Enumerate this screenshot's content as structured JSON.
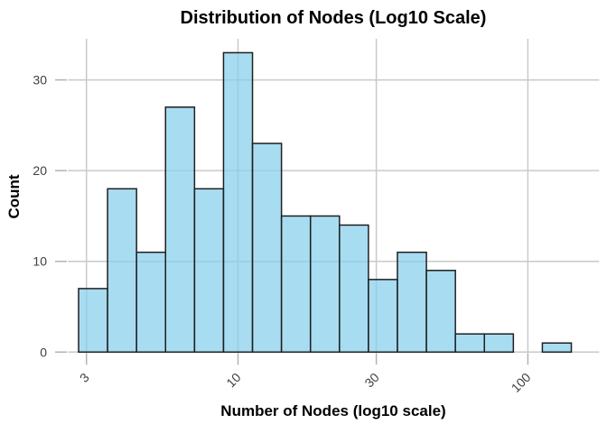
{
  "chart_data": {
    "type": "bar",
    "subtype": "histogram",
    "title": "Distribution of Nodes (Log10 Scale)",
    "xlabel": "Number of Nodes (log10 scale)",
    "ylabel": "Count",
    "x_scale": "log10",
    "grid": true,
    "legend": false,
    "x_ticks": [
      3,
      10,
      30,
      100
    ],
    "x_tick_labels": [
      "3",
      "10",
      "30",
      "100"
    ],
    "y_ticks": [
      0,
      10,
      20,
      30
    ],
    "y_tick_labels": [
      "0",
      "10",
      "20",
      "30"
    ],
    "ylim": [
      0,
      34.5
    ],
    "bin_edges_log10_start": 0.45,
    "bin_width_log10": 0.1,
    "bin_edges_approx": [
      2.8,
      3.5,
      4.5,
      5.6,
      7.1,
      8.9,
      11.2,
      14.1,
      17.8,
      22.4,
      28.2,
      35.5,
      44.7,
      56.2,
      70.8,
      89.1,
      112.2,
      141.3
    ],
    "counts": [
      7,
      18,
      11,
      27,
      18,
      33,
      23,
      15,
      15,
      14,
      8,
      11,
      9,
      2,
      2,
      0,
      1
    ],
    "colors": {
      "bar_fill_rgba": "rgba(135,206,235,0.72)",
      "bar_fill_hex": "#A9DAEF",
      "bar_stroke": "#1F1F1F",
      "gridline": "#C9C9C9",
      "tick_mark": "#B3B3B3",
      "tick_label": "#404040",
      "title_text": "#000000",
      "background": "#FFFFFF"
    }
  }
}
